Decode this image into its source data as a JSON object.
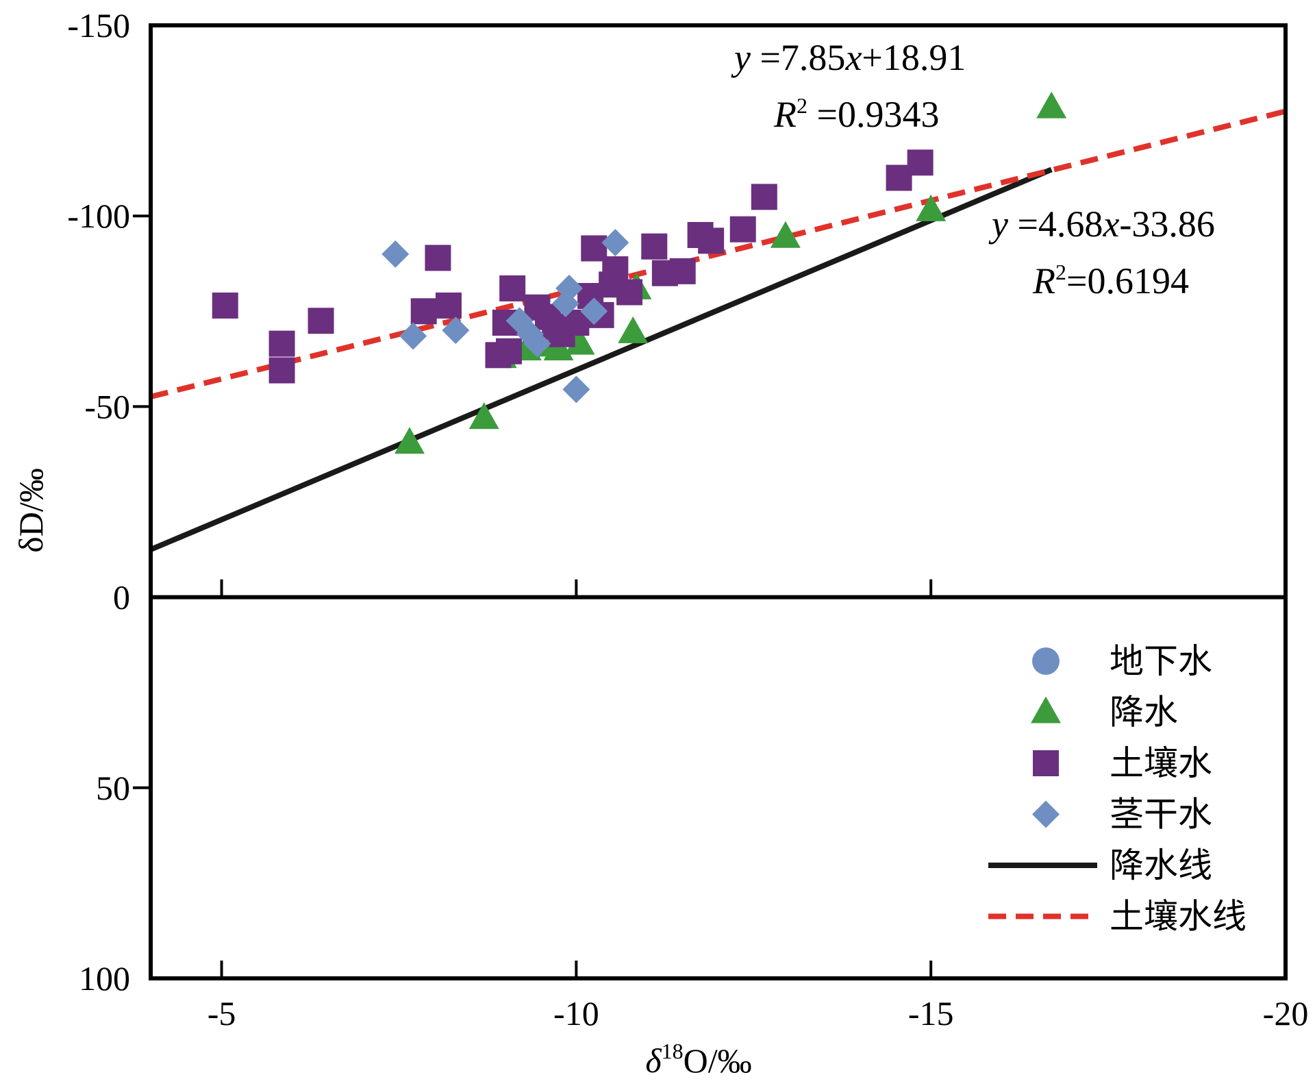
{
  "chart_data": {
    "type": "scatter",
    "xlabel": {
      "base": "δ",
      "sup": "18",
      "rest": "O/‰"
    },
    "ylabel": "δD/‰",
    "xlim": [
      -4,
      -20
    ],
    "ylim": [
      100,
      -150
    ],
    "x_ticks": [
      -5,
      -10,
      -15,
      -20
    ],
    "x_tick_labels": [
      "-5",
      "-10",
      "-15",
      "-20"
    ],
    "y_ticks": [
      -150,
      -100,
      -50,
      0,
      50,
      100
    ],
    "y_tick_labels": [
      "-150",
      "-100",
      "-50",
      "0",
      "50",
      "100"
    ],
    "zero_line": true,
    "grid": false,
    "legend_position": "bottom-right",
    "series": [
      {
        "name": "地下水",
        "marker": "circle",
        "color": "#6f8fc3",
        "points": []
      },
      {
        "name": "降水",
        "marker": "triangle",
        "color": "#3c9c3c",
        "points": [
          [
            -7.65,
            -40.5
          ],
          [
            -8.7,
            -47
          ],
          [
            -8.95,
            -63
          ],
          [
            -9.3,
            -65
          ],
          [
            -9.6,
            -66
          ],
          [
            -9.75,
            -65
          ],
          [
            -10.05,
            -66.5
          ],
          [
            -10.8,
            -69.5
          ],
          [
            -10.85,
            -81
          ],
          [
            -12.95,
            -94.5
          ],
          [
            -15.0,
            -101.5
          ],
          [
            -16.7,
            -128.5
          ]
        ]
      },
      {
        "name": "土壤水",
        "marker": "square",
        "color": "#6b2f7f",
        "points": [
          [
            -5.05,
            -76.5
          ],
          [
            -5.85,
            -66.5
          ],
          [
            -5.85,
            -59.5
          ],
          [
            -6.4,
            -72.5
          ],
          [
            -7.85,
            -75
          ],
          [
            -8.05,
            -89
          ],
          [
            -8.2,
            -76.5
          ],
          [
            -8.9,
            -63.5
          ],
          [
            -9.05,
            -64.5
          ],
          [
            -9.0,
            -72
          ],
          [
            -9.1,
            -81
          ],
          [
            -9.45,
            -76
          ],
          [
            -9.6,
            -73.5
          ],
          [
            -9.7,
            -71
          ],
          [
            -9.8,
            -69
          ],
          [
            -10.0,
            -72
          ],
          [
            -10.2,
            -79
          ],
          [
            -10.35,
            -74
          ],
          [
            -10.25,
            -91.5
          ],
          [
            -10.55,
            -86
          ],
          [
            -10.5,
            -82
          ],
          [
            -10.75,
            -80
          ],
          [
            -11.1,
            -92
          ],
          [
            -11.25,
            -85
          ],
          [
            -11.5,
            -85.5
          ],
          [
            -11.75,
            -95
          ],
          [
            -11.9,
            -93.5
          ],
          [
            -12.35,
            -96.5
          ],
          [
            -12.65,
            -105
          ],
          [
            -14.55,
            -110
          ],
          [
            -14.85,
            -114
          ]
        ]
      },
      {
        "name": "茎干水",
        "marker": "diamond",
        "color": "#6f8fc3",
        "points": [
          [
            -7.45,
            -90
          ],
          [
            -7.7,
            -68.5
          ],
          [
            -8.3,
            -70
          ],
          [
            -9.2,
            -72.5
          ],
          [
            -9.35,
            -69
          ],
          [
            -9.45,
            -66.5
          ],
          [
            -9.85,
            -77
          ],
          [
            -9.9,
            -81
          ],
          [
            -10.0,
            -54.5
          ],
          [
            -10.25,
            -75
          ],
          [
            -10.55,
            -93
          ]
        ]
      }
    ],
    "lines": [
      {
        "name": "降水线",
        "style": "solid",
        "color": "#1a1a1a",
        "slope": 7.85,
        "intercept": 18.91,
        "x_range": [
          -4,
          -16.7
        ],
        "equation": {
          "y": "y",
          "rest": " =7.85",
          "x": "x",
          "tail": "+18.91"
        },
        "r2": {
          "R": "R",
          "sup": "2",
          "rest": " =0.9343"
        }
      },
      {
        "name": "土壤水线",
        "style": "dashed",
        "color": "#e0322a",
        "slope": 4.68,
        "intercept": -33.86,
        "x_range": [
          -4,
          -20
        ],
        "equation": {
          "y": "y",
          "rest": " =4.68",
          "x": "x",
          "tail": "-33.86"
        },
        "r2": {
          "R": "R",
          "sup": "2",
          "rest": "=0.6194"
        }
      }
    ]
  }
}
